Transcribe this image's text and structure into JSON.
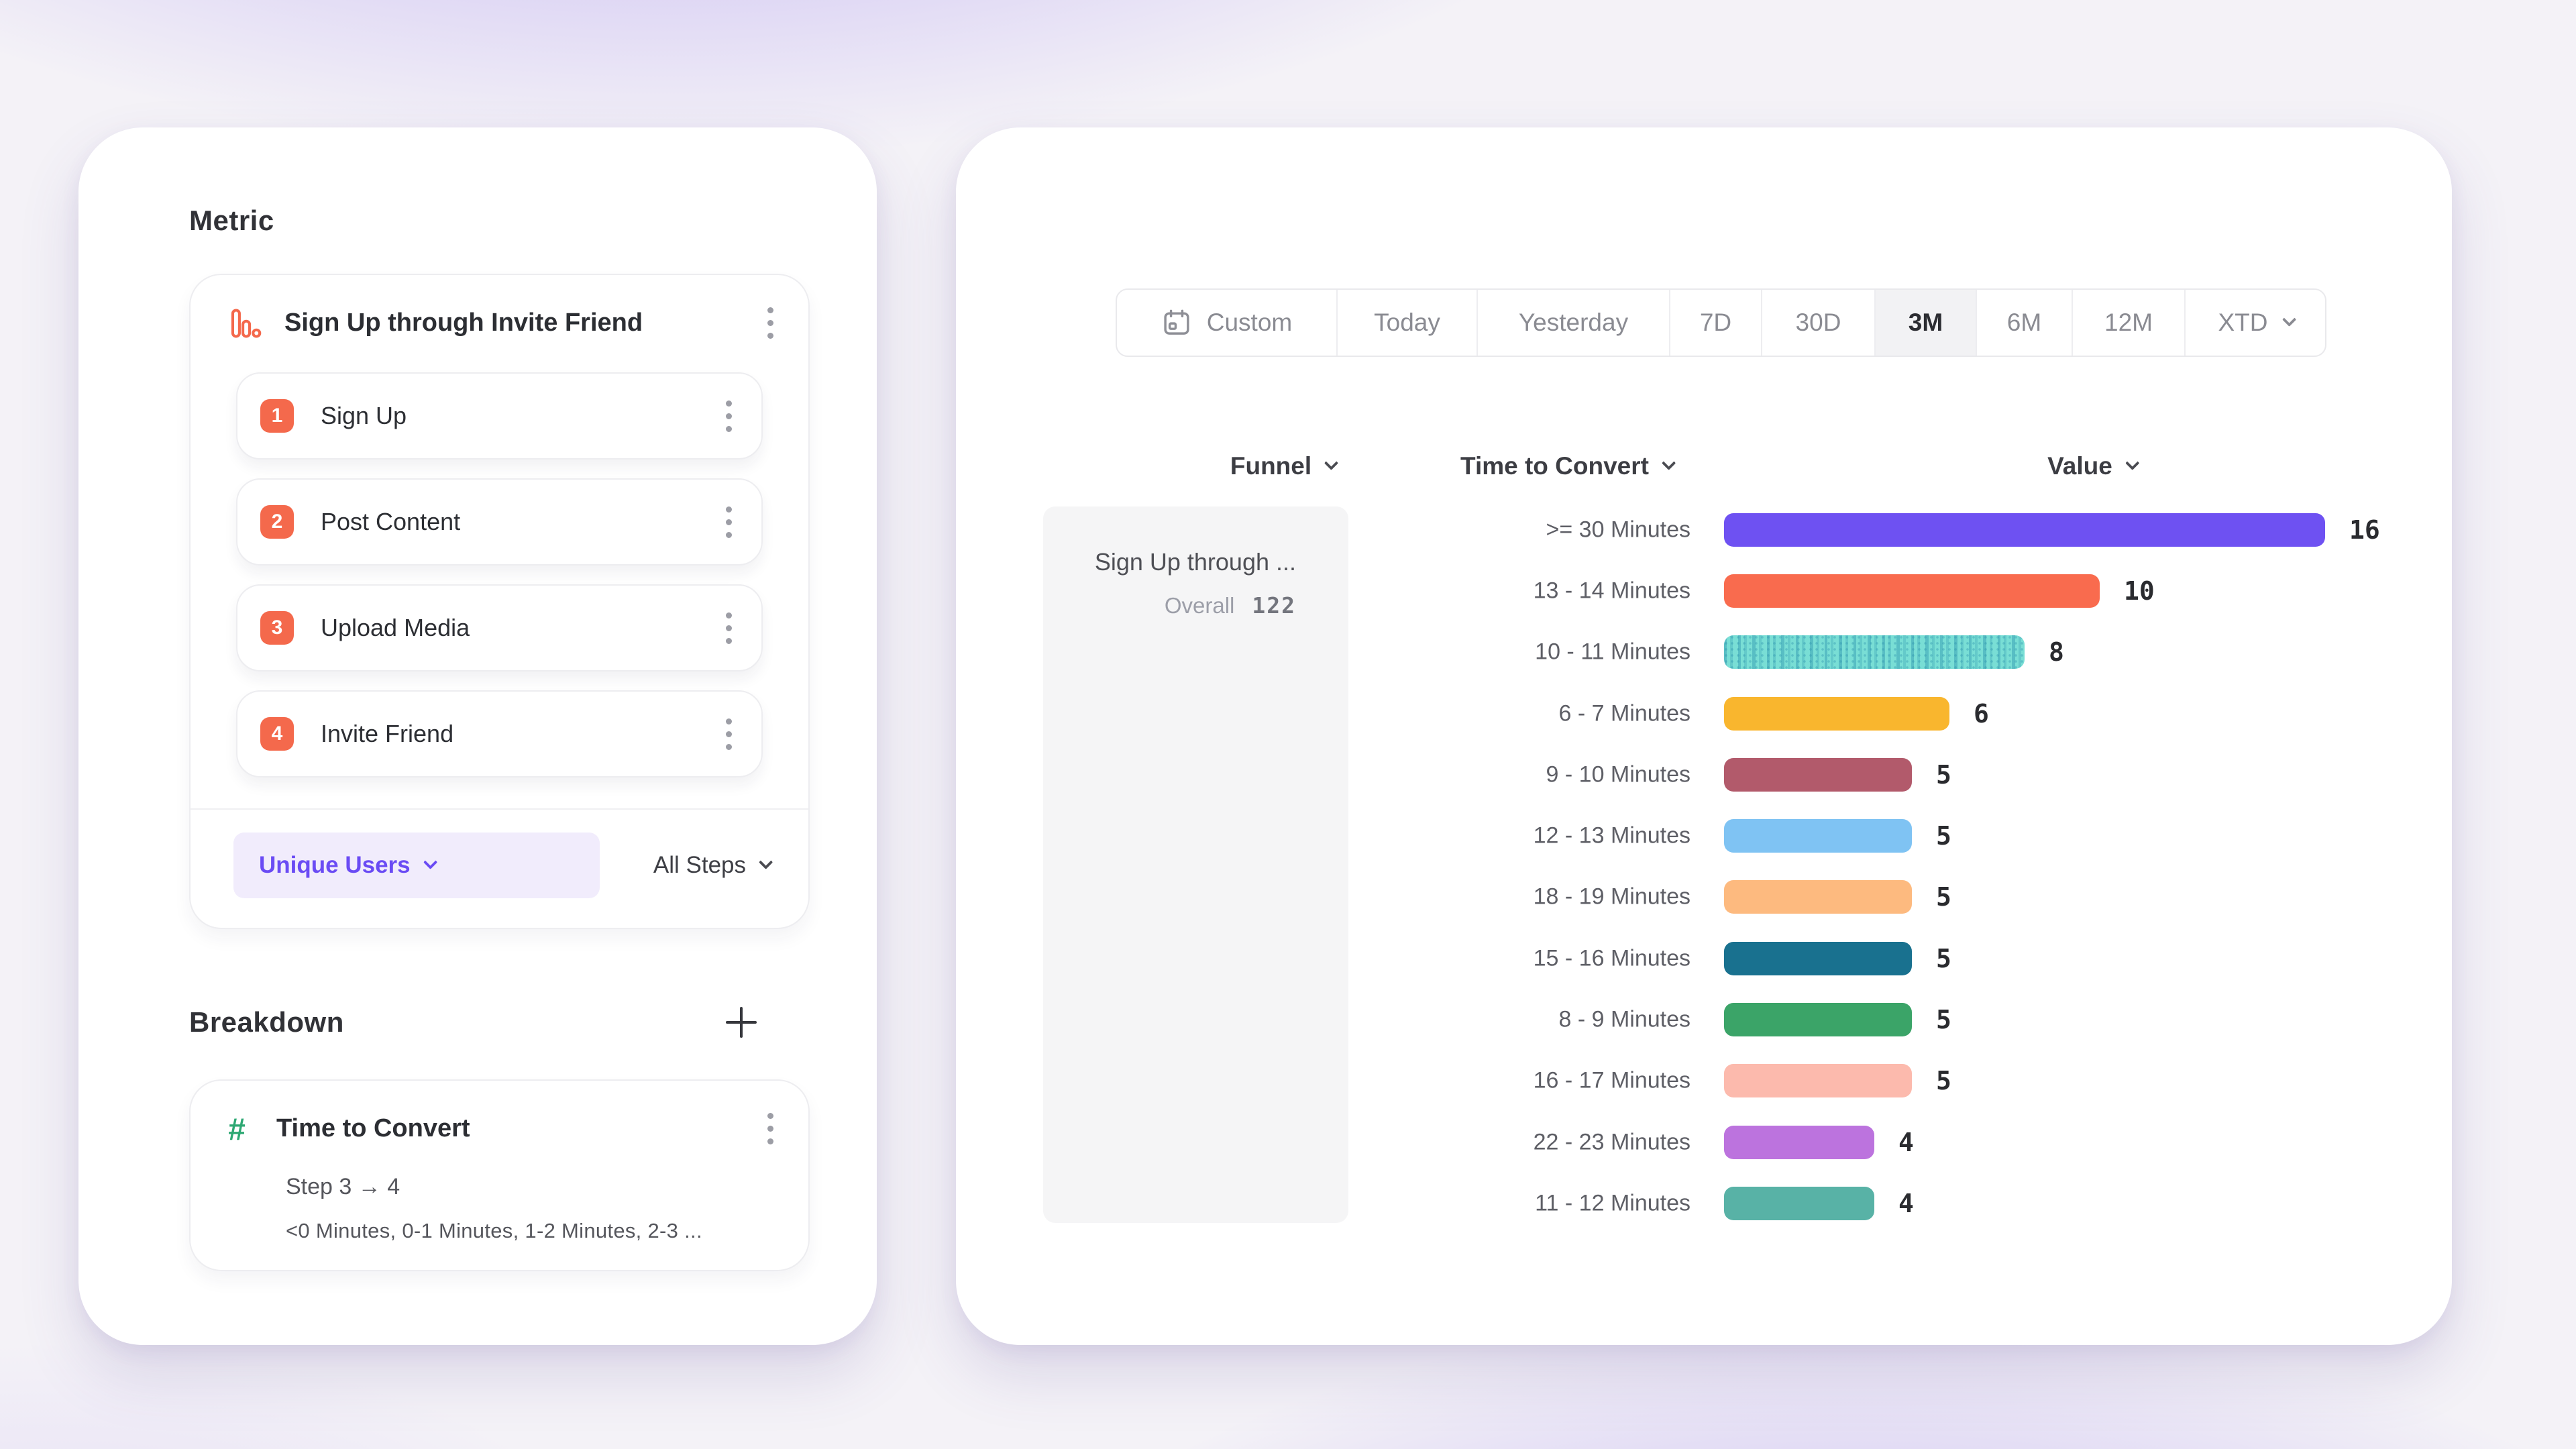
{
  "left_panel": {
    "metric": {
      "heading": "Metric",
      "funnel_name": "Sign Up through Invite Friend",
      "steps": [
        {
          "number": "1",
          "label": "Sign Up"
        },
        {
          "number": "2",
          "label": "Post Content"
        },
        {
          "number": "3",
          "label": "Upload Media"
        },
        {
          "number": "4",
          "label": "Invite Friend"
        }
      ],
      "counting_method": "Unique Users",
      "steps_filter": "All Steps"
    },
    "breakdown": {
      "heading": "Breakdown",
      "property_name": "Time to Convert",
      "step_range": "Step 3 → 4",
      "buckets_preview": "<0 Minutes, 0-1 Minutes, 1-2 Minutes, 2-3 ..."
    }
  },
  "right_panel": {
    "time_range": {
      "selected": "3M",
      "options": [
        "Custom",
        "Today",
        "Yesterday",
        "7D",
        "30D",
        "3M",
        "6M",
        "12M",
        "XTD"
      ]
    },
    "columns": {
      "funnel": "Funnel",
      "breakdown": "Time to Convert",
      "value": "Value"
    }
  },
  "chart_data": {
    "type": "bar",
    "orientation": "horizontal",
    "legend": "none",
    "grid": "off",
    "funnel": {
      "name": "Sign Up through ...",
      "overall_label": "Overall",
      "overall_value": "122"
    },
    "categories": [
      ">= 30 Minutes",
      "13 - 14 Minutes",
      "10 - 11 Minutes",
      "6 - 7 Minutes",
      "9 - 10 Minutes",
      "12 - 13 Minutes",
      "18 - 19 Minutes",
      "15 - 16 Minutes",
      "8 - 9 Minutes",
      "16 - 17 Minutes",
      "22 - 23 Minutes",
      "11 - 12 Minutes"
    ],
    "values": [
      16,
      10,
      8,
      6,
      5,
      5,
      5,
      5,
      5,
      5,
      4,
      4
    ],
    "colors": [
      "#6E51F2",
      "#F96B4E",
      "#79DED5",
      "#F9B62E",
      "#B25A6B",
      "#7FC3F3",
      "#FDBA7F",
      "#19718F",
      "#3BA468",
      "#FCBAAD",
      "#BC73DE",
      "#58B2A6"
    ],
    "patterns": [
      "solid",
      "solid",
      "dotted",
      "solid",
      "solid",
      "solid",
      "solid",
      "solid",
      "solid",
      "solid",
      "solid",
      "solid"
    ],
    "xlim": [
      0,
      16
    ],
    "accent_colors": {
      "primary_purple": "#6A4BF4",
      "step_orange": "#F4694C",
      "breakdown_green": "#2EA873"
    }
  }
}
